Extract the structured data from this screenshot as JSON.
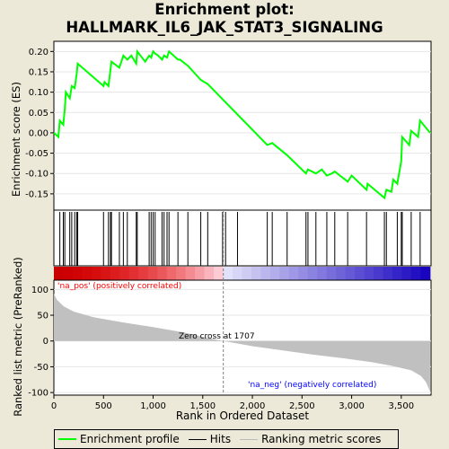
{
  "title_line1": "Enrichment plot:",
  "title_line2": "HALLMARK_IL6_JAK_STAT3_SIGNALING",
  "top_ylabel": "Enrichment score (ES)",
  "bottom_ylabel": "Ranked list metric (PreRanked)",
  "xlabel": "Rank in Ordered Dataset",
  "annotations": {
    "pos": "'na_pos' (positively correlated)",
    "neg": "'na_neg' (negatively correlated)",
    "zero": "Zero cross at 1707"
  },
  "legend": [
    {
      "label": "Enrichment profile",
      "color": "#00ff00"
    },
    {
      "label": "Hits",
      "color": "#000000"
    },
    {
      "label": "Ranking metric scores",
      "color": "#bbbbbb"
    }
  ],
  "colors": {
    "es": "#00ff00",
    "metric": "#c0c0c0",
    "pos": "#ff0000",
    "neg": "#0000ff",
    "zero": "#808080"
  },
  "chart_data": [
    {
      "type": "line",
      "name": "enrichment",
      "xlim": [
        0,
        3800
      ],
      "ylim": [
        -0.19,
        0.225
      ],
      "yticks": [
        -0.15,
        -0.1,
        -0.05,
        0.0,
        0.05,
        0.1,
        0.15,
        0.2
      ],
      "ytick_labels": [
        "-0.15",
        "-0.10",
        "-0.05",
        "0.00",
        "0.05",
        "0.10",
        "0.15",
        "0.20"
      ],
      "x": [
        0,
        45,
        60,
        95,
        110,
        120,
        160,
        180,
        210,
        230,
        240,
        500,
        510,
        550,
        570,
        580,
        660,
        700,
        740,
        780,
        830,
        840,
        920,
        960,
        980,
        1000,
        1020,
        1050,
        1090,
        1110,
        1140,
        1160,
        1250,
        1270,
        1350,
        1480,
        1550,
        1850,
        2150,
        2200,
        2350,
        2540,
        2560,
        2640,
        2700,
        2750,
        2800,
        2830,
        2960,
        3000,
        3150,
        3160,
        3330,
        3350,
        3400,
        3420,
        3460,
        3500,
        3510,
        3580,
        3600,
        3670,
        3690,
        3790
      ],
      "y": [
        0.0,
        -0.01,
        0.03,
        0.02,
        0.06,
        0.1,
        0.085,
        0.115,
        0.11,
        0.145,
        0.17,
        0.115,
        0.125,
        0.115,
        0.155,
        0.175,
        0.16,
        0.19,
        0.18,
        0.19,
        0.17,
        0.2,
        0.175,
        0.19,
        0.185,
        0.2,
        0.195,
        0.19,
        0.18,
        0.19,
        0.185,
        0.2,
        0.18,
        0.18,
        0.165,
        0.13,
        0.12,
        0.045,
        -0.03,
        -0.025,
        -0.055,
        -0.1,
        -0.09,
        -0.1,
        -0.09,
        -0.105,
        -0.1,
        -0.095,
        -0.12,
        -0.105,
        -0.14,
        -0.125,
        -0.16,
        -0.14,
        -0.145,
        -0.115,
        -0.125,
        -0.07,
        -0.01,
        -0.03,
        0.005,
        -0.01,
        0.03,
        0.0
      ]
    },
    {
      "type": "scatter",
      "name": "hits",
      "xlim": [
        0,
        3800
      ],
      "x": [
        60,
        95,
        110,
        160,
        180,
        210,
        230,
        240,
        500,
        550,
        570,
        580,
        660,
        700,
        740,
        830,
        840,
        960,
        980,
        1000,
        1020,
        1090,
        1110,
        1140,
        1160,
        1250,
        1350,
        1480,
        1550,
        1700,
        1730,
        1850,
        2150,
        2200,
        2350,
        2540,
        2560,
        2640,
        2750,
        2830,
        2960,
        3150,
        3330,
        3350,
        3460,
        3500,
        3510,
        3600,
        3690
      ]
    },
    {
      "type": "area",
      "name": "ranking metric",
      "xlim": [
        0,
        3800
      ],
      "ylim": [
        -105,
        118
      ],
      "yticks": [
        -100,
        -50,
        0,
        50,
        100
      ],
      "ytick_labels": [
        "-100",
        "-50",
        "0",
        "50",
        "100"
      ],
      "x": [
        0,
        30,
        100,
        200,
        400,
        700,
        1000,
        1300,
        1500,
        1707,
        2000,
        2300,
        2600,
        2900,
        3200,
        3400,
        3600,
        3700,
        3750,
        3790
      ],
      "y": [
        92,
        80,
        67,
        57,
        46,
        36,
        27,
        17,
        8,
        0,
        -10,
        -18,
        -26,
        -33,
        -41,
        -48,
        -57,
        -68,
        -80,
        -98
      ],
      "zero_cross": 1707,
      "xticks": [
        0,
        500,
        1000,
        1500,
        2000,
        2500,
        3000,
        3500
      ],
      "xtick_labels": [
        "0",
        "500",
        "1,000",
        "1,500",
        "2,000",
        "2,500",
        "3,000",
        "3,500"
      ]
    }
  ]
}
